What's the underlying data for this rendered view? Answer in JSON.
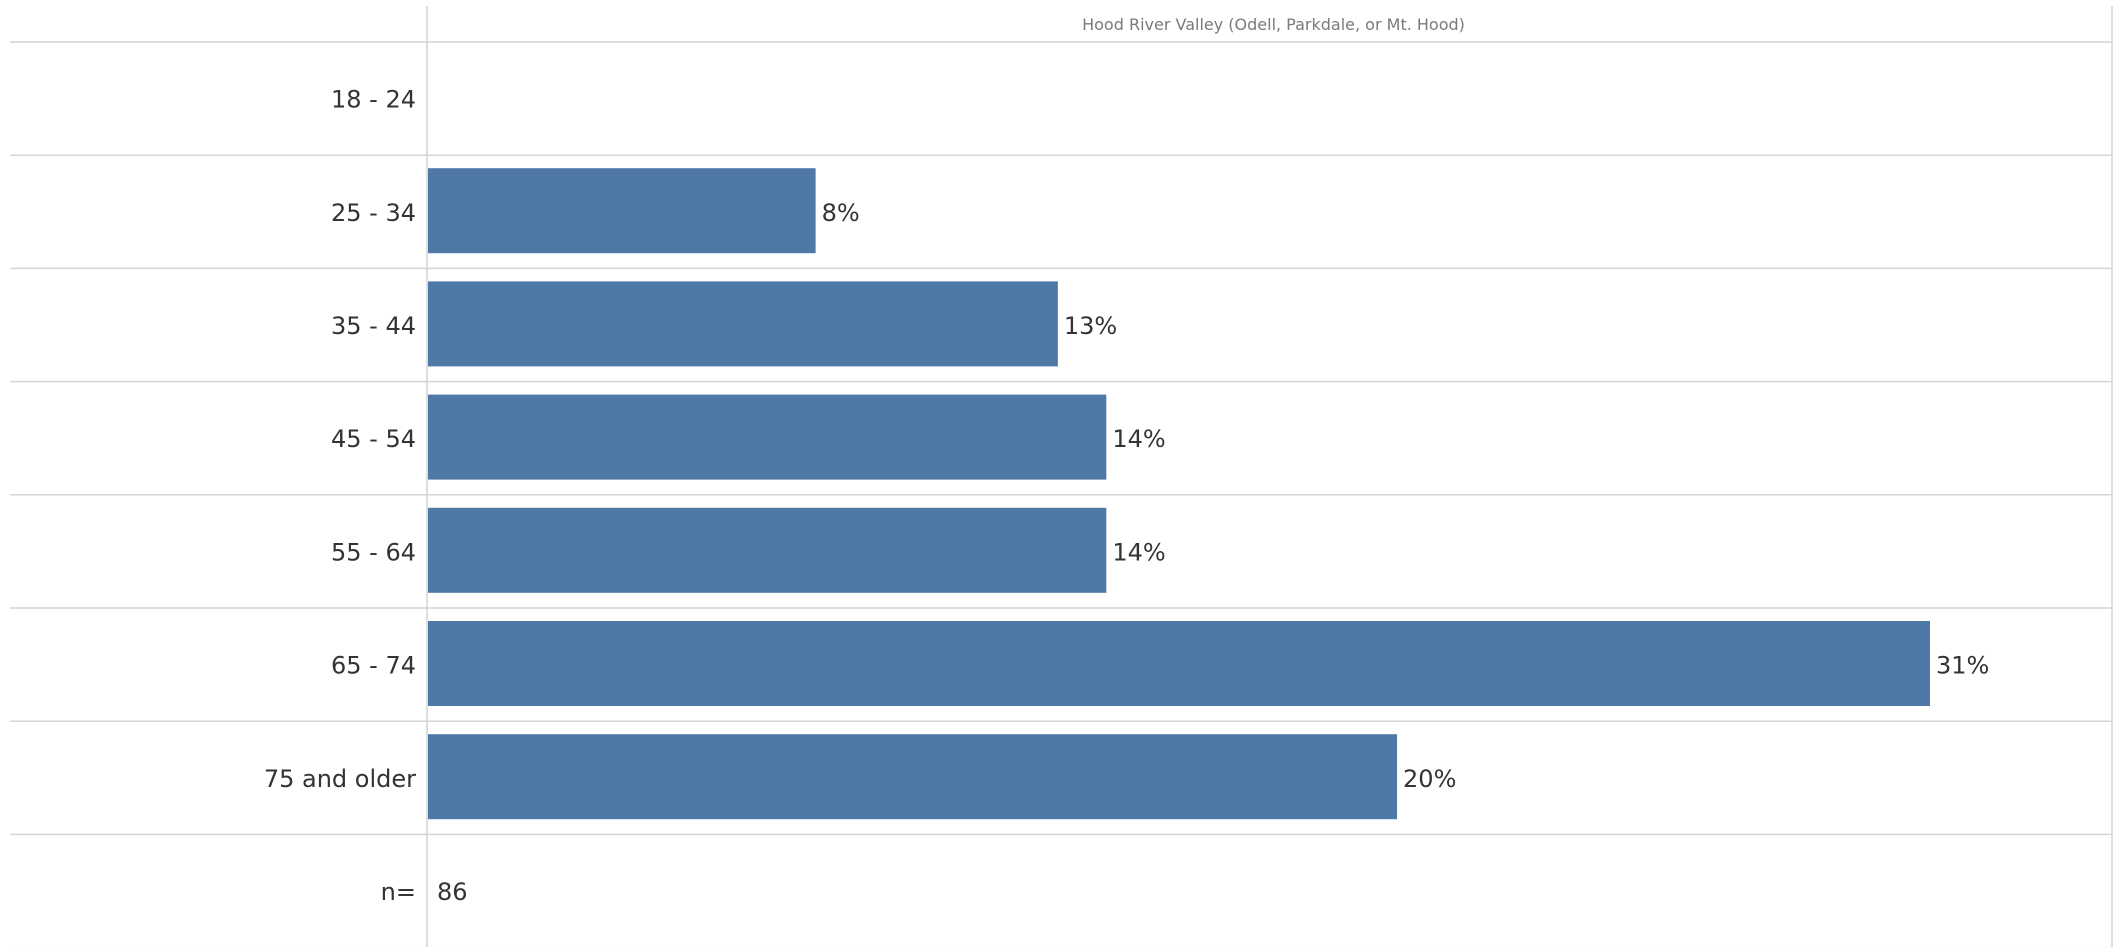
{
  "chart_data": {
    "type": "bar",
    "orientation": "horizontal",
    "column_header": "Hood River Valley (Odell, Parkdale, or Mt. Hood)",
    "categories": [
      "18 - 24",
      "25 - 34",
      "35 - 44",
      "45 - 54",
      "55 - 64",
      "65 - 74",
      "75 and older"
    ],
    "series": [
      {
        "values": [
          0,
          8,
          13,
          14,
          14,
          31,
          20
        ],
        "labels": [
          "",
          "8%",
          "13%",
          "14%",
          "14%",
          "31%",
          "20%"
        ]
      }
    ],
    "footer": {
      "label": "n=",
      "value": "86"
    },
    "xlim": [
      0,
      31
    ],
    "grid": true,
    "bar_color": "#4e79a7"
  }
}
